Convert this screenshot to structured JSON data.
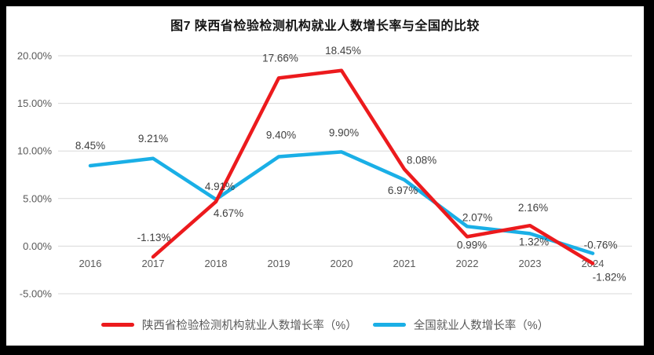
{
  "chart_data": {
    "type": "line",
    "title": "图7 陕西省检验检测机构就业人数增长率与全国的比较",
    "categories": [
      "2016",
      "2017",
      "2018",
      "2019",
      "2020",
      "2021",
      "2022",
      "2023",
      "2024"
    ],
    "series": [
      {
        "name": "陕西省检验检测机构就业人数增长率（%）",
        "color": "#ec1a1d",
        "values": [
          null,
          -1.13,
          4.67,
          17.66,
          18.45,
          8.08,
          0.99,
          2.16,
          -1.82
        ],
        "labels": [
          "",
          "-1.13%",
          "4.67%",
          "17.66%",
          "18.45%",
          "8.08%",
          "0.99%",
          "2.16%",
          "-1.82%"
        ]
      },
      {
        "name": "全国就业人数增长率（%）",
        "color": "#1aafe6",
        "values": [
          8.45,
          9.21,
          4.91,
          9.4,
          9.9,
          6.97,
          2.07,
          1.32,
          -0.76
        ],
        "labels": [
          "8.45%",
          "9.21%",
          "4.91%",
          "9.40%",
          "9.90%",
          "6.97%",
          "2.07%",
          "1.32%",
          "-0.76%"
        ]
      }
    ],
    "y_ticks": [
      "20.00%",
      "15.00%",
      "10.00%",
      "5.00%",
      "0.00%",
      "-5.00%"
    ],
    "y_tick_values": [
      20,
      15,
      10,
      5,
      0,
      -5
    ],
    "ylim": [
      -5,
      20
    ],
    "grid": true,
    "legend_position": "bottom",
    "grid_color": "#d9d9d9",
    "tick_color": "#595959",
    "data_label_color": "#404040"
  }
}
